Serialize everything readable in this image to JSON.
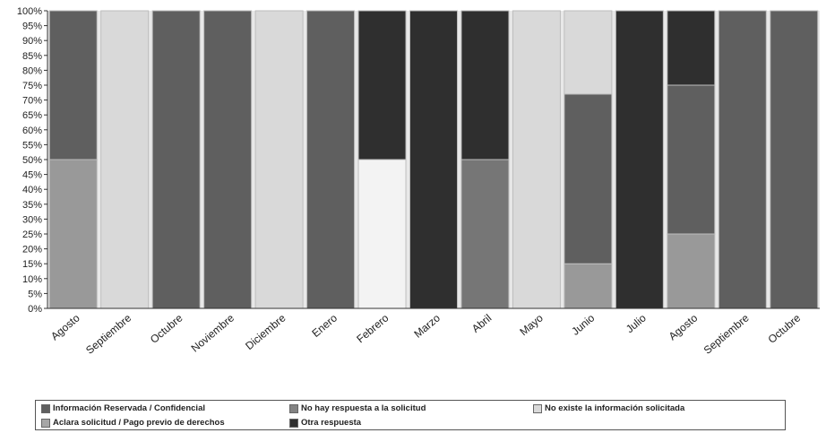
{
  "chart_data": {
    "type": "bar",
    "stacked": true,
    "categories": [
      "Agosto",
      "Septiembre",
      "Octubre",
      "Noviembre",
      "Diciembre",
      "Enero",
      "Febrero",
      "Marzo",
      "Abril",
      "Mayo",
      "Junio",
      "Julio",
      "Agosto",
      "Septiembre",
      "Octubre"
    ],
    "series": [
      {
        "name": "Información Reservada / Confidencial",
        "color": "#5f5f5f",
        "values": [
          50,
          0,
          100,
          100,
          0,
          100,
          0,
          0,
          0,
          0,
          57,
          0,
          50,
          100,
          100
        ]
      },
      {
        "name": "No hay respuesta a la solicitud",
        "color": "#767676",
        "values": [
          0,
          0,
          0,
          0,
          0,
          0,
          0,
          0,
          50,
          0,
          0,
          0,
          0,
          0,
          0
        ]
      },
      {
        "name": "No existe la información solicitada",
        "color": "#d9d9d9",
        "values": [
          0,
          100,
          0,
          0,
          100,
          0,
          0,
          0,
          0,
          100,
          28,
          0,
          0,
          0,
          0
        ]
      },
      {
        "name": "Aclara solicitud / Pago previo de derechos",
        "color": "#999999",
        "values": [
          50,
          0,
          0,
          0,
          0,
          0,
          0,
          0,
          0,
          0,
          15,
          0,
          25,
          0,
          0
        ]
      },
      {
        "name": "Otra respuesta",
        "color": "#2f2f2f",
        "values": [
          0,
          0,
          0,
          0,
          0,
          0,
          50,
          100,
          50,
          0,
          0,
          100,
          25,
          0,
          0
        ]
      },
      {
        "name": "",
        "color": "#f3f3f3",
        "values": [
          0,
          0,
          0,
          0,
          0,
          0,
          50,
          0,
          0,
          0,
          0,
          0,
          0,
          0,
          0
        ]
      }
    ],
    "order_bottom_to_top": [
      3,
      1,
      0,
      2,
      5,
      4
    ],
    "yticks": [
      "0%",
      "5%",
      "10%",
      "15%",
      "20%",
      "25%",
      "30%",
      "35%",
      "40%",
      "45%",
      "50%",
      "55%",
      "60%",
      "65%",
      "70%",
      "75%",
      "80%",
      "85%",
      "90%",
      "95%",
      "100%"
    ],
    "ylim": [
      0,
      100
    ],
    "grid": false,
    "legend_position": "bottom",
    "title": "",
    "xlabel": "",
    "ylabel": ""
  },
  "legend": [
    {
      "label": "Información Reservada / Confidencial",
      "color": "#5f5f5f"
    },
    {
      "label": "No hay respuesta a la solicitud",
      "color": "#838383"
    },
    {
      "label": "No existe la información solicitada",
      "color": "#d9d9d9"
    },
    {
      "label": "Aclara solicitud / Pago previo de derechos",
      "color": "#a6a6a6"
    },
    {
      "label": "Otra respuesta",
      "color": "#2f2f2f"
    }
  ]
}
